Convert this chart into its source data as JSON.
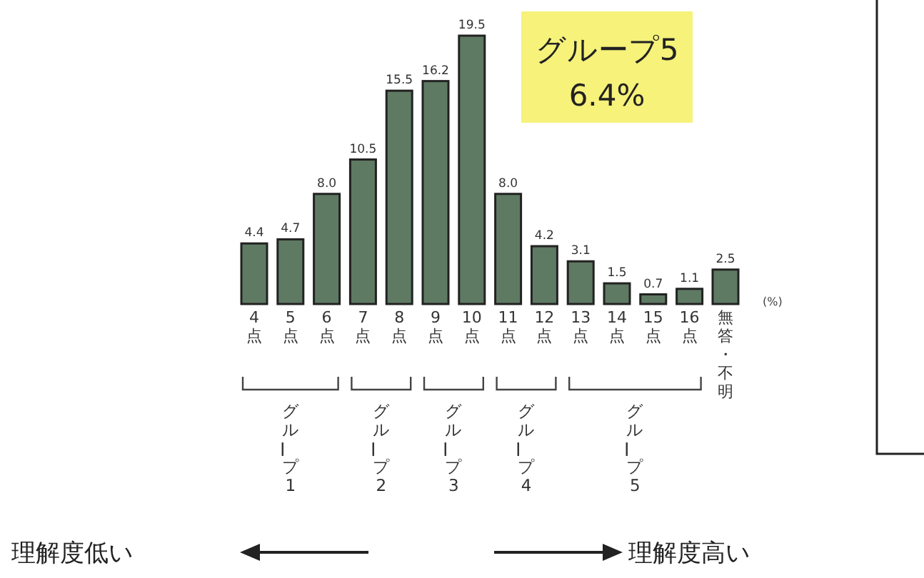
{
  "chart_data": {
    "type": "bar",
    "categories": [
      "4点",
      "5点",
      "6点",
      "7点",
      "8点",
      "9点",
      "10点",
      "11点",
      "12点",
      "13点",
      "14点",
      "15点",
      "16点",
      "無答・不明"
    ],
    "values": [
      4.4,
      4.7,
      8.0,
      10.5,
      15.5,
      16.2,
      19.5,
      8.0,
      4.2,
      3.1,
      1.5,
      0.7,
      1.1,
      2.5
    ],
    "value_labels": [
      "4.4",
      "4.7",
      "8.0",
      "10.5",
      "15.5",
      "16.2",
      "19.5",
      "8.0",
      "4.2",
      "3.1",
      "1.5",
      "0.7",
      "1.1",
      "2.5"
    ],
    "color": "#5f7a63",
    "annotations": [
      "グループ1",
      "グループ2",
      "グループ3",
      "グループ4",
      "グループ5",
      "グループ5",
      "6.4%",
      "(%)",
      "理解度低い",
      "理解度高い"
    ]
  }
}
